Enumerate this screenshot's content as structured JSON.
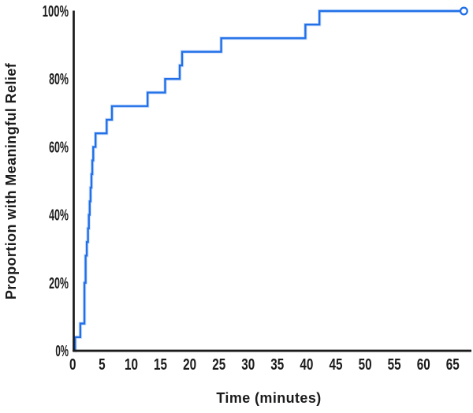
{
  "chart_data": {
    "type": "line",
    "subtype": "step-function-cumulative-proportion",
    "title": "",
    "xlabel": "Time (minutes)",
    "ylabel": "Proportion with Meaningful Relief",
    "xlim": [
      0,
      68
    ],
    "ylim": [
      0,
      100
    ],
    "x_ticks": [
      0,
      5,
      10,
      15,
      20,
      25,
      30,
      35,
      40,
      45,
      50,
      55,
      60,
      65
    ],
    "x_tick_labels": [
      "0",
      "5",
      "10",
      "15",
      "20",
      "25",
      "30",
      "35",
      "40",
      "45",
      "50",
      "55",
      "60",
      "65"
    ],
    "y_ticks": [
      0,
      20,
      40,
      60,
      80,
      100
    ],
    "y_tick_labels": [
      "0%",
      "20%",
      "40%",
      "60%",
      "80%",
      "100%"
    ],
    "grid": false,
    "legend": false,
    "series": [
      {
        "name": "Proportion with meaningful relief",
        "start": {
          "t": 0.3,
          "p": 0
        },
        "steps": [
          [
            0.4,
            4
          ],
          [
            1.3,
            8
          ],
          [
            2.0,
            20
          ],
          [
            2.2,
            28
          ],
          [
            2.4,
            32
          ],
          [
            2.6,
            36
          ],
          [
            2.75,
            40
          ],
          [
            2.9,
            44
          ],
          [
            3.05,
            48
          ],
          [
            3.2,
            52
          ],
          [
            3.35,
            56
          ],
          [
            3.5,
            60
          ],
          [
            3.9,
            64
          ],
          [
            5.8,
            68
          ],
          [
            6.7,
            72
          ],
          [
            12.8,
            76
          ],
          [
            15.8,
            80
          ],
          [
            18.3,
            84
          ],
          [
            18.7,
            88
          ],
          [
            25.4,
            92
          ],
          [
            39.8,
            96
          ],
          [
            42.2,
            100
          ]
        ],
        "end": {
          "t": 66.9,
          "p": 100,
          "marker": "open-circle"
        }
      }
    ]
  },
  "colors": {
    "curve": "#2170e8",
    "curve_halo": "#a9c7f7",
    "axis": "#1b1b1b",
    "text": "#1b1b1b",
    "marker_fill": "#ffffff"
  }
}
